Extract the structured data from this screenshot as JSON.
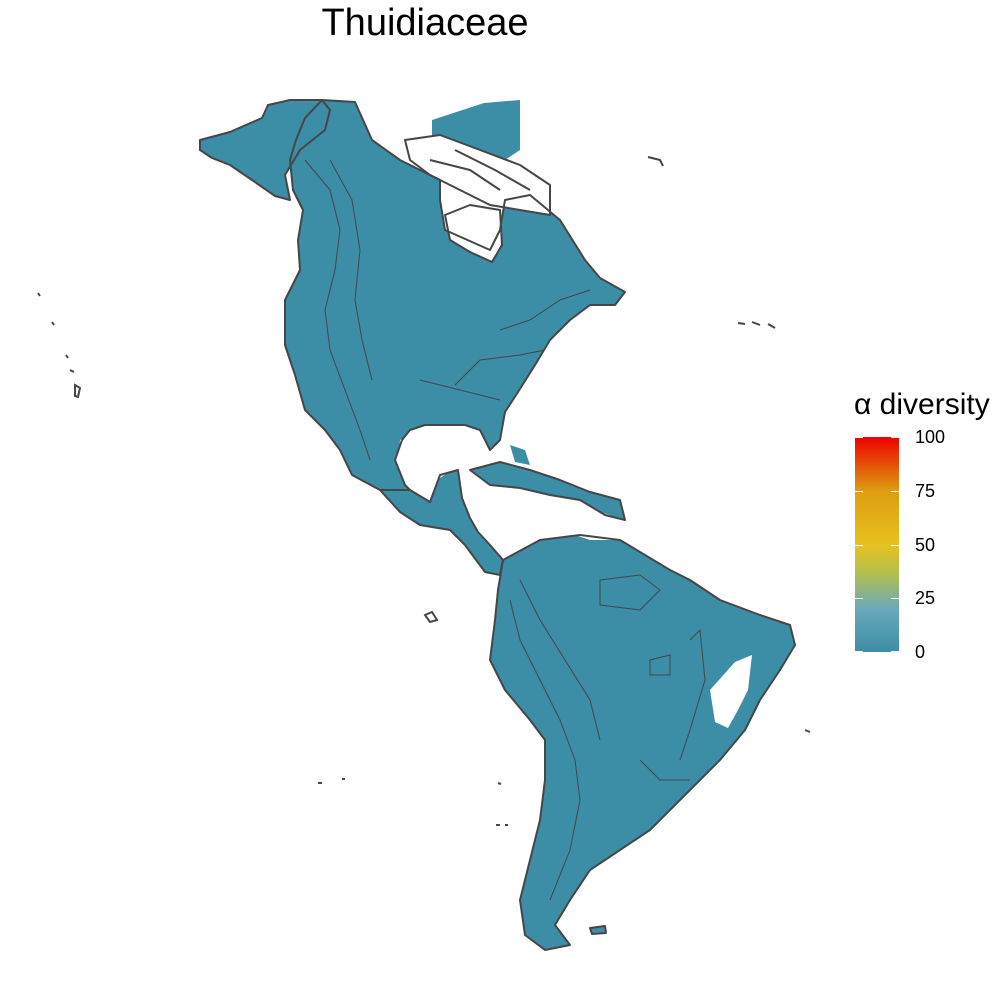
{
  "map": {
    "title": "Thuidiaceae",
    "land_color": "#3c8da6",
    "border_color": "#464646"
  },
  "legend": {
    "title": "α diversity",
    "ticks": [
      {
        "label": "100",
        "value": 100
      },
      {
        "label": "75",
        "value": 75
      },
      {
        "label": "50",
        "value": 50
      },
      {
        "label": "25",
        "value": 25
      },
      {
        "label": "0",
        "value": 0
      }
    ],
    "min": 0,
    "max": 100,
    "gradient_stops": [
      {
        "value": 0,
        "color": "#3c8da6"
      },
      {
        "value": 20,
        "color": "#6aa9bb"
      },
      {
        "value": 37,
        "color": "#b3c04a"
      },
      {
        "value": 50,
        "color": "#e7c11f"
      },
      {
        "value": 75,
        "color": "#dd9d10"
      },
      {
        "value": 100,
        "color": "#ee0000"
      }
    ]
  }
}
